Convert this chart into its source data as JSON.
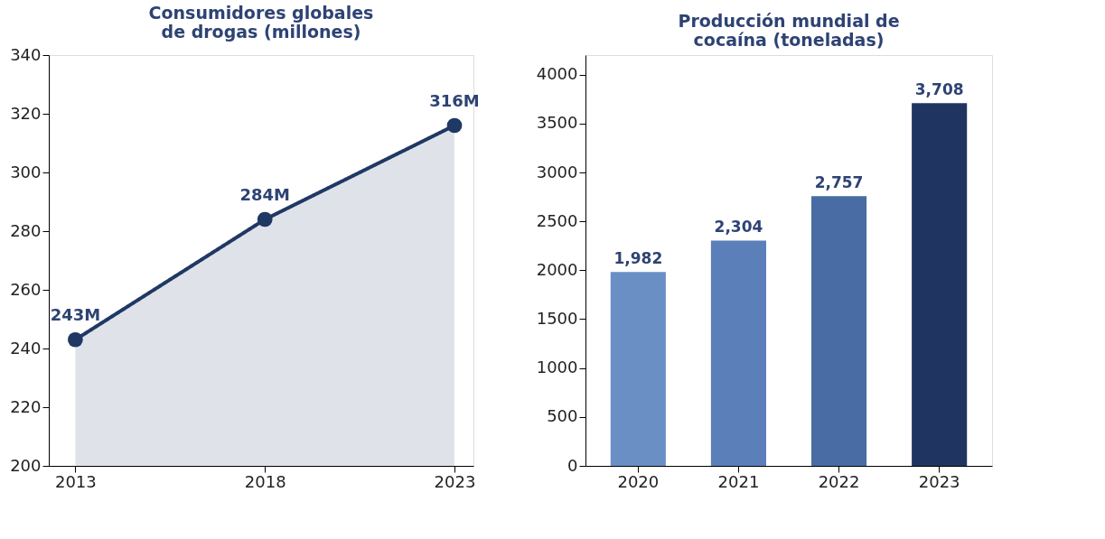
{
  "chart_data": [
    {
      "type": "area",
      "title": "Consumidores globales\nde drogas (millones)",
      "x": [
        2013,
        2018,
        2023
      ],
      "series": [
        {
          "color": "#1f3864",
          "values": [
            243,
            284,
            316
          ],
          "value_labels": [
            "243M",
            "284M",
            "316M"
          ]
        }
      ],
      "xlim": [
        2012.3,
        2023.5
      ],
      "xticks": [
        2013,
        2018,
        2023
      ],
      "ylim": [
        200,
        340
      ],
      "yticks": [
        200,
        220,
        240,
        260,
        280,
        300,
        320,
        340
      ],
      "marker": "circle",
      "line_style": "solid",
      "grid": false,
      "legend": false
    },
    {
      "type": "bar",
      "title": "Producción mundial de\ncocaína (toneladas)",
      "categories": [
        "2020",
        "2021",
        "2022",
        "2023"
      ],
      "values": [
        1982,
        2304,
        2757,
        3708
      ],
      "colors": [
        "#6a8fc5",
        "#5a7fb9",
        "#486ca3",
        "#1f3461"
      ],
      "value_labels": [
        "1,982",
        "2,304",
        "2,757",
        "3,708"
      ],
      "ylim": [
        0,
        4200
      ],
      "yticks": [
        0,
        500,
        1000,
        1500,
        2000,
        2500,
        3000,
        3500,
        4000
      ],
      "grid": false,
      "legend": false
    }
  ]
}
